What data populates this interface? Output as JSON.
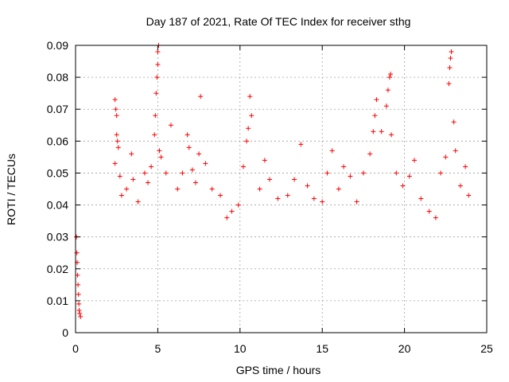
{
  "chart_data": {
    "type": "scatter",
    "title": "Day 187 of 2021, Rate Of TEC Index for receiver sthg",
    "xlabel": "GPS time / hours",
    "ylabel": "ROTI / TECUs",
    "xlim": [
      0,
      25
    ],
    "ylim": [
      0,
      0.09
    ],
    "xticks": [
      0,
      5,
      10,
      15,
      20,
      25
    ],
    "xtick_labels": [
      "0",
      "5",
      "10",
      "15",
      "20",
      "25"
    ],
    "yticks": [
      0,
      0.01,
      0.02,
      0.03,
      0.04,
      0.05,
      0.06,
      0.07,
      0.08,
      0.09
    ],
    "ytick_labels": [
      "0",
      "0.01",
      "0.02",
      "0.03",
      "0.04",
      "0.05",
      "0.06",
      "0.07",
      "0.08",
      "0.09"
    ],
    "grid": true,
    "marker": "+",
    "color": "#ff0000",
    "series": [
      {
        "name": "ROTI",
        "points": [
          [
            0.05,
            0.03
          ],
          [
            0.08,
            0.025
          ],
          [
            0.1,
            0.022
          ],
          [
            0.12,
            0.018
          ],
          [
            0.15,
            0.015
          ],
          [
            0.18,
            0.012
          ],
          [
            0.2,
            0.009
          ],
          [
            0.22,
            0.007
          ],
          [
            0.25,
            0.006
          ],
          [
            0.3,
            0.005
          ],
          [
            2.4,
            0.073
          ],
          [
            2.45,
            0.07
          ],
          [
            2.5,
            0.068
          ],
          [
            2.5,
            0.062
          ],
          [
            2.55,
            0.06
          ],
          [
            2.6,
            0.058
          ],
          [
            2.7,
            0.049
          ],
          [
            2.4,
            0.053
          ],
          [
            2.8,
            0.043
          ],
          [
            3.1,
            0.045
          ],
          [
            3.4,
            0.056
          ],
          [
            3.5,
            0.048
          ],
          [
            3.8,
            0.041
          ],
          [
            4.2,
            0.05
          ],
          [
            4.4,
            0.047
          ],
          [
            4.6,
            0.052
          ],
          [
            4.8,
            0.062
          ],
          [
            4.85,
            0.068
          ],
          [
            4.9,
            0.075
          ],
          [
            4.95,
            0.08
          ],
          [
            5.0,
            0.084
          ],
          [
            5.0,
            0.088
          ],
          [
            5.05,
            0.09
          ],
          [
            5.1,
            0.057
          ],
          [
            5.2,
            0.055
          ],
          [
            5.5,
            0.05
          ],
          [
            5.8,
            0.065
          ],
          [
            6.2,
            0.045
          ],
          [
            6.5,
            0.05
          ],
          [
            6.8,
            0.062
          ],
          [
            6.9,
            0.058
          ],
          [
            7.1,
            0.051
          ],
          [
            7.3,
            0.047
          ],
          [
            7.5,
            0.056
          ],
          [
            7.6,
            0.074
          ],
          [
            7.9,
            0.053
          ],
          [
            8.3,
            0.045
          ],
          [
            8.8,
            0.043
          ],
          [
            9.2,
            0.036
          ],
          [
            9.5,
            0.038
          ],
          [
            9.9,
            0.04
          ],
          [
            10.2,
            0.052
          ],
          [
            10.4,
            0.06
          ],
          [
            10.5,
            0.064
          ],
          [
            10.6,
            0.074
          ],
          [
            10.7,
            0.068
          ],
          [
            11.2,
            0.045
          ],
          [
            11.5,
            0.054
          ],
          [
            11.8,
            0.048
          ],
          [
            12.3,
            0.042
          ],
          [
            12.9,
            0.043
          ],
          [
            13.3,
            0.048
          ],
          [
            13.7,
            0.059
          ],
          [
            14.1,
            0.046
          ],
          [
            14.5,
            0.042
          ],
          [
            15.0,
            0.041
          ],
          [
            15.3,
            0.05
          ],
          [
            15.6,
            0.057
          ],
          [
            16.0,
            0.045
          ],
          [
            16.3,
            0.052
          ],
          [
            16.7,
            0.049
          ],
          [
            17.1,
            0.041
          ],
          [
            17.5,
            0.05
          ],
          [
            17.9,
            0.056
          ],
          [
            18.1,
            0.063
          ],
          [
            18.2,
            0.068
          ],
          [
            18.3,
            0.073
          ],
          [
            18.6,
            0.063
          ],
          [
            18.9,
            0.071
          ],
          [
            19.0,
            0.076
          ],
          [
            19.1,
            0.08
          ],
          [
            19.15,
            0.081
          ],
          [
            19.2,
            0.062
          ],
          [
            19.5,
            0.05
          ],
          [
            19.9,
            0.046
          ],
          [
            20.3,
            0.049
          ],
          [
            20.6,
            0.054
          ],
          [
            21.0,
            0.042
          ],
          [
            21.5,
            0.038
          ],
          [
            21.9,
            0.036
          ],
          [
            22.2,
            0.05
          ],
          [
            22.5,
            0.055
          ],
          [
            22.7,
            0.078
          ],
          [
            22.75,
            0.083
          ],
          [
            22.8,
            0.086
          ],
          [
            22.85,
            0.088
          ],
          [
            23.0,
            0.066
          ],
          [
            23.1,
            0.057
          ],
          [
            23.4,
            0.046
          ],
          [
            23.7,
            0.052
          ],
          [
            23.9,
            0.043
          ]
        ]
      }
    ]
  }
}
